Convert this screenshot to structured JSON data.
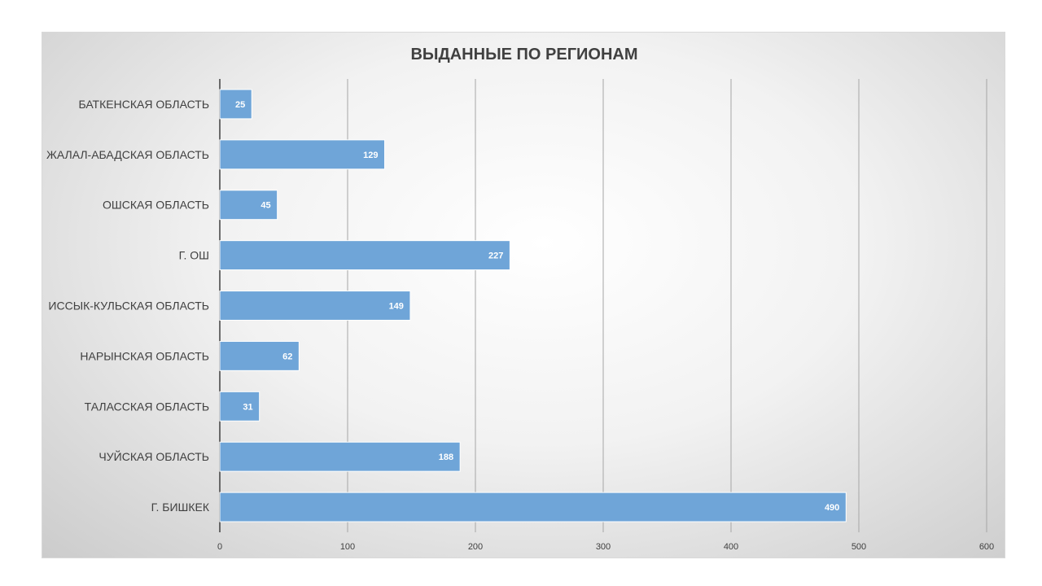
{
  "chart_data": {
    "type": "bar",
    "orientation": "horizontal",
    "title": "ВЫДАННЫЕ ПО РЕГИОНАМ",
    "categories": [
      "БАТКЕНСКАЯ ОБЛАСТЬ",
      "ЖАЛАЛ-АБАДСКАЯ ОБЛАСТЬ",
      "ОШСКАЯ ОБЛАСТЬ",
      "Г. ОШ",
      "ИССЫК-КУЛЬСКАЯ ОБЛАСТЬ",
      "НАРЫНСКАЯ ОБЛАСТЬ",
      "ТАЛАССКАЯ ОБЛАСТЬ",
      "ЧУЙСКАЯ ОБЛАСТЬ",
      "Г. БИШКЕК"
    ],
    "values": [
      25,
      129,
      45,
      227,
      149,
      62,
      31,
      188,
      490
    ],
    "xlim": [
      0,
      600
    ],
    "xticks": [
      "0",
      "100",
      "200",
      "300",
      "400",
      "500",
      "600"
    ],
    "grid": true,
    "legend": "none",
    "colors": {
      "bar": "#6fa5d8",
      "bar_border": "#ffffff",
      "gridline": "#a6a6a6",
      "axis": "#404040"
    }
  }
}
